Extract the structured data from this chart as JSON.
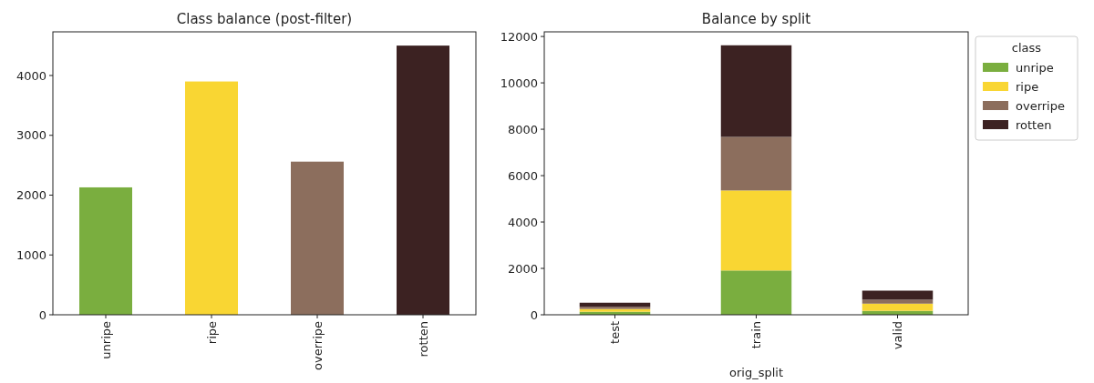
{
  "chart_data": [
    {
      "type": "bar",
      "title": "Class balance (post-filter)",
      "categories": [
        "unripe",
        "ripe",
        "overripe",
        "rotten"
      ],
      "values": [
        2130,
        3900,
        2560,
        4500
      ],
      "colors": [
        "#7aae3f",
        "#f9d633",
        "#8c6e5d",
        "#3c2222"
      ],
      "ylim": [
        0,
        4730
      ],
      "yticks": [
        0,
        1000,
        2000,
        3000,
        4000
      ],
      "grid": false,
      "legend": false
    },
    {
      "type": "bar",
      "title": "Balance by split",
      "xlabel": "orig_split",
      "categories": [
        "test",
        "train",
        "valid"
      ],
      "stacked": true,
      "legend_title": "class",
      "legend": "top right",
      "grid": false,
      "ylim": [
        0,
        12200
      ],
      "yticks": [
        0,
        2000,
        4000,
        6000,
        8000,
        10000,
        12000
      ],
      "series": [
        {
          "name": "unripe",
          "color": "#7aae3f",
          "values": [
            130,
            1910,
            170
          ]
        },
        {
          "name": "ripe",
          "color": "#f9d633",
          "values": [
            120,
            3450,
            310
          ]
        },
        {
          "name": "overripe",
          "color": "#8c6e5d",
          "values": [
            90,
            2310,
            170
          ]
        },
        {
          "name": "rotten",
          "color": "#3c2222",
          "values": [
            180,
            3950,
            390
          ]
        }
      ]
    }
  ]
}
